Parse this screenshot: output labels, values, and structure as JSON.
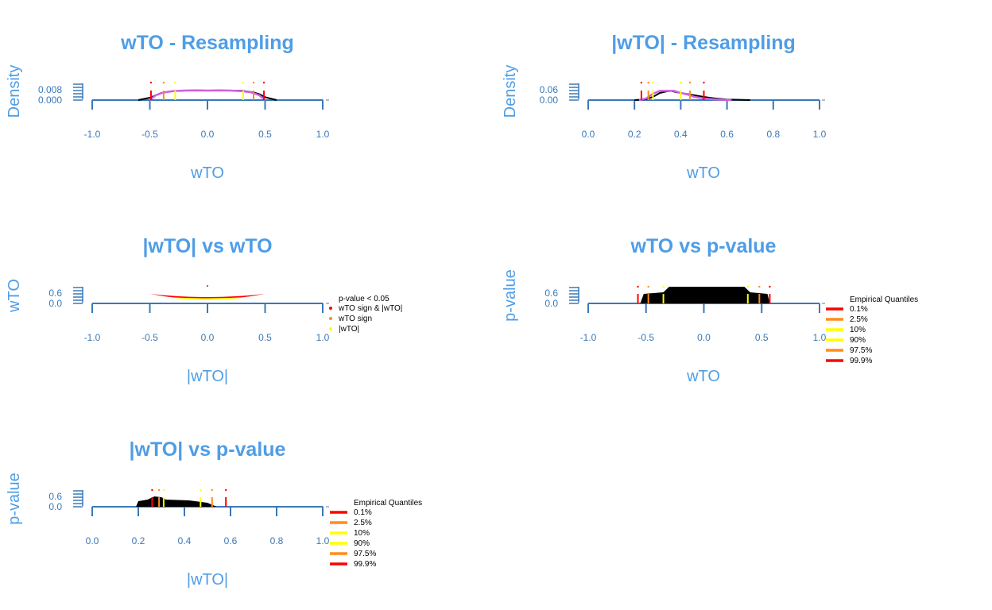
{
  "colors": {
    "title": "#4f9de6",
    "axis": "#3a78b8",
    "purple": "#d25fe0",
    "red": "#ff0000",
    "orange": "#ff8c1a",
    "yellow": "#ffff00",
    "black": "#000000"
  },
  "chart_data": [
    {
      "id": "p1",
      "type": "line",
      "title": "wTO - Resampling",
      "xlabel": "wTO",
      "ylabel": "Density",
      "xticks": [
        "-1.0",
        "-0.5",
        "0.0",
        "0.5",
        "1.0"
      ],
      "yticks": [
        "0.000",
        "0.008"
      ],
      "xlim": [
        -1,
        1
      ],
      "ylim": [
        0,
        0.012
      ],
      "series": [
        {
          "style": "black",
          "x": [
            -0.6,
            -0.5,
            -0.45,
            -0.4,
            -0.3,
            -0.2,
            -0.1,
            0.0,
            0.1,
            0.2,
            0.3,
            0.4,
            0.45,
            0.5,
            0.6
          ],
          "y": [
            0.0,
            0.002,
            0.004,
            0.006,
            0.0075,
            0.008,
            0.0082,
            0.008,
            0.0082,
            0.008,
            0.0078,
            0.0065,
            0.005,
            0.0025,
            0.0
          ]
        },
        {
          "style": "purple",
          "x": [
            -0.5,
            -0.45,
            -0.38,
            -0.3,
            -0.2,
            0.0,
            0.2,
            0.3,
            0.38,
            0.45,
            0.5
          ],
          "y": [
            0.0,
            0.004,
            0.0065,
            0.0075,
            0.008,
            0.008,
            0.008,
            0.0075,
            0.0065,
            0.004,
            0.0
          ]
        }
      ],
      "quantile_lines": [
        {
          "x": -0.49,
          "color": "red"
        },
        {
          "x": -0.38,
          "color": "orange"
        },
        {
          "x": -0.28,
          "color": "yellow"
        },
        {
          "x": 0.31,
          "color": "yellow"
        },
        {
          "x": 0.4,
          "color": "orange"
        },
        {
          "x": 0.49,
          "color": "red"
        }
      ]
    },
    {
      "id": "p2",
      "type": "line",
      "title": "|wTO| - Resampling",
      "xlabel": "wTO",
      "ylabel": "Density",
      "xticks": [
        "0.0",
        "0.2",
        "0.4",
        "0.6",
        "0.8",
        "1.0"
      ],
      "yticks": [
        "0.00",
        "0.06"
      ],
      "xlim": [
        0,
        1
      ],
      "ylim": [
        0,
        0.09
      ],
      "series": [
        {
          "style": "black",
          "x": [
            0.2,
            0.25,
            0.28,
            0.31,
            0.34,
            0.36,
            0.38,
            0.42,
            0.46,
            0.5,
            0.55,
            0.6,
            0.7
          ],
          "y": [
            0.0,
            0.005,
            0.02,
            0.045,
            0.055,
            0.058,
            0.05,
            0.04,
            0.03,
            0.02,
            0.01,
            0.004,
            0.0
          ]
        },
        {
          "style": "purple",
          "x": [
            0.22,
            0.25,
            0.28,
            0.31,
            0.37,
            0.4,
            0.43,
            0.46,
            0.5,
            0.55,
            0.62
          ],
          "y": [
            0.0,
            0.01,
            0.04,
            0.058,
            0.058,
            0.045,
            0.035,
            0.02,
            0.01,
            0.004,
            0.0
          ]
        }
      ],
      "quantile_lines": [
        {
          "x": 0.23,
          "color": "red"
        },
        {
          "x": 0.26,
          "color": "orange"
        },
        {
          "x": 0.28,
          "color": "yellow"
        },
        {
          "x": 0.4,
          "color": "yellow"
        },
        {
          "x": 0.44,
          "color": "orange"
        },
        {
          "x": 0.5,
          "color": "red"
        }
      ]
    },
    {
      "id": "p3",
      "type": "scatter",
      "title": "|wTO| vs wTO",
      "xlabel": "|wTO|",
      "ylabel": "wTO",
      "xticks": [
        "-1.0",
        "-0.5",
        "0.0",
        "0.5",
        "1.0"
      ],
      "yticks": [
        "0.0",
        "0.6"
      ],
      "xlim": [
        -1,
        1
      ],
      "ylim": [
        0,
        1.2
      ],
      "legend_title": "p-value < 0.05",
      "legend": [
        {
          "label": "wTO sign & |wTO|",
          "color": "red"
        },
        {
          "label": "wTO sign",
          "color": "orange"
        },
        {
          "label": "|wTO|",
          "color": "yellow"
        }
      ]
    },
    {
      "id": "p4",
      "type": "scatter",
      "title": "wTO vs p-value",
      "xlabel": "wTO",
      "ylabel": "p-value",
      "xticks": [
        "-1.0",
        "-0.5",
        "0.0",
        "0.5",
        "1.0"
      ],
      "yticks": [
        "0.0",
        "0.6"
      ],
      "xlim": [
        -1,
        1
      ],
      "ylim": [
        0,
        1.2
      ],
      "quantile_lines": [
        {
          "x": -0.57,
          "color": "red"
        },
        {
          "x": -0.48,
          "color": "orange"
        },
        {
          "x": -0.35,
          "color": "yellow"
        },
        {
          "x": 0.38,
          "color": "yellow"
        },
        {
          "x": 0.48,
          "color": "orange"
        },
        {
          "x": 0.57,
          "color": "red"
        }
      ],
      "legend_title": "Empirical Quantiles",
      "legend": [
        {
          "label": "0.1%",
          "color": "red"
        },
        {
          "label": "2.5%",
          "color": "orange"
        },
        {
          "label": "10%",
          "color": "yellow"
        },
        {
          "label": "90%",
          "color": "yellow"
        },
        {
          "label": "97.5%",
          "color": "orange"
        },
        {
          "label": "99.9%",
          "color": "red"
        }
      ]
    },
    {
      "id": "p5",
      "type": "scatter",
      "title": "|wTO| vs p-value",
      "xlabel": "|wTO|",
      "ylabel": "p-value",
      "xticks": [
        "0.0",
        "0.2",
        "0.4",
        "0.6",
        "0.8",
        "1.0"
      ],
      "yticks": [
        "0.0",
        "0.6"
      ],
      "xlim": [
        0,
        1
      ],
      "ylim": [
        0,
        1.2
      ],
      "quantile_lines": [
        {
          "x": 0.26,
          "color": "red"
        },
        {
          "x": 0.29,
          "color": "orange"
        },
        {
          "x": 0.31,
          "color": "yellow"
        },
        {
          "x": 0.47,
          "color": "yellow"
        },
        {
          "x": 0.52,
          "color": "orange"
        },
        {
          "x": 0.58,
          "color": "red"
        }
      ],
      "legend_title": "Empirical Quantiles",
      "legend": [
        {
          "label": "0.1%",
          "color": "red"
        },
        {
          "label": "2.5%",
          "color": "orange"
        },
        {
          "label": "10%",
          "color": "yellow"
        },
        {
          "label": "90%",
          "color": "yellow"
        },
        {
          "label": "97.5%",
          "color": "orange"
        },
        {
          "label": "99.9%",
          "color": "red"
        }
      ]
    }
  ]
}
